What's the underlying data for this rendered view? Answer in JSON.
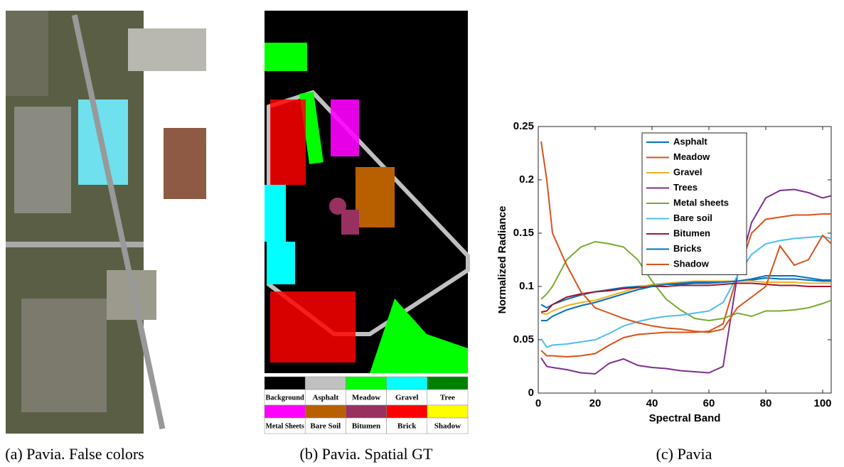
{
  "figure_a": {
    "caption": "(a) Pavia. False colors"
  },
  "figure_b": {
    "caption": "(b) Pavia. Spatial GT",
    "legend": [
      {
        "label": "Background",
        "color": "#000000"
      },
      {
        "label": "Asphalt",
        "color": "#c0c0c0"
      },
      {
        "label": "Meadow",
        "color": "#00ff00"
      },
      {
        "label": "Gravel",
        "color": "#00ffff"
      },
      {
        "label": "Tree",
        "color": "#008000"
      },
      {
        "label": "Metal Sheets",
        "color": "#ff00ff"
      },
      {
        "label": "Bare Soil",
        "color": "#b86000"
      },
      {
        "label": "Bitumen",
        "color": "#983060"
      },
      {
        "label": "Brick",
        "color": "#ff0000"
      },
      {
        "label": "Shadow",
        "color": "#ffff00"
      }
    ]
  },
  "chart_data": {
    "type": "line",
    "caption": "(c) Pavia",
    "x_label": "Spectral Band",
    "y_label": "Normalized Radiance",
    "xlim": [
      0,
      103
    ],
    "ylim": [
      0,
      0.25
    ],
    "xticks": [
      0,
      20,
      40,
      60,
      80,
      100
    ],
    "yticks": [
      0,
      0.05,
      0.1,
      0.15,
      0.2,
      0.25
    ],
    "x": [
      1,
      3,
      5,
      10,
      15,
      20,
      25,
      30,
      35,
      40,
      45,
      50,
      55,
      60,
      65,
      70,
      75,
      80,
      85,
      90,
      95,
      100,
      103
    ],
    "series": [
      {
        "name": "Asphalt",
        "color": "#0072bd",
        "values": [
          0.083,
          0.08,
          0.083,
          0.088,
          0.092,
          0.095,
          0.097,
          0.099,
          0.1,
          0.101,
          0.102,
          0.102,
          0.103,
          0.103,
          0.104,
          0.105,
          0.106,
          0.108,
          0.107,
          0.107,
          0.106,
          0.105,
          0.105
        ]
      },
      {
        "name": "Meadow",
        "color": "#d95319",
        "values": [
          0.04,
          0.035,
          0.035,
          0.034,
          0.035,
          0.037,
          0.045,
          0.052,
          0.055,
          0.056,
          0.057,
          0.057,
          0.057,
          0.058,
          0.065,
          0.11,
          0.15,
          0.163,
          0.165,
          0.167,
          0.167,
          0.168,
          0.168
        ]
      },
      {
        "name": "Gravel",
        "color": "#edb120",
        "values": [
          0.075,
          0.074,
          0.077,
          0.082,
          0.085,
          0.087,
          0.091,
          0.095,
          0.099,
          0.102,
          0.103,
          0.104,
          0.105,
          0.105,
          0.105,
          0.105,
          0.105,
          0.104,
          0.104,
          0.104,
          0.103,
          0.103,
          0.103
        ]
      },
      {
        "name": "Trees",
        "color": "#7e2f8e",
        "values": [
          0.033,
          0.025,
          0.024,
          0.022,
          0.019,
          0.018,
          0.028,
          0.032,
          0.026,
          0.024,
          0.023,
          0.021,
          0.02,
          0.019,
          0.025,
          0.11,
          0.16,
          0.183,
          0.19,
          0.191,
          0.188,
          0.183,
          0.185
        ]
      },
      {
        "name": "Metal sheets",
        "color": "#77ac30",
        "values": [
          0.088,
          0.093,
          0.1,
          0.125,
          0.137,
          0.142,
          0.14,
          0.137,
          0.125,
          0.105,
          0.088,
          0.078,
          0.07,
          0.068,
          0.07,
          0.075,
          0.072,
          0.077,
          0.077,
          0.078,
          0.08,
          0.084,
          0.087
        ]
      },
      {
        "name": "Bare soil",
        "color": "#4dbeee",
        "values": [
          0.051,
          0.043,
          0.045,
          0.046,
          0.048,
          0.05,
          0.056,
          0.063,
          0.067,
          0.07,
          0.072,
          0.073,
          0.075,
          0.077,
          0.085,
          0.11,
          0.13,
          0.14,
          0.143,
          0.145,
          0.146,
          0.147,
          0.145
        ]
      },
      {
        "name": "Bitumen",
        "color": "#a2142f",
        "values": [
          0.076,
          0.077,
          0.083,
          0.09,
          0.093,
          0.095,
          0.096,
          0.098,
          0.099,
          0.1,
          0.1,
          0.101,
          0.101,
          0.101,
          0.102,
          0.103,
          0.103,
          0.102,
          0.101,
          0.101,
          0.1,
          0.1,
          0.1
        ]
      },
      {
        "name": "Bricks",
        "color": "#0072bd",
        "values": [
          0.068,
          0.068,
          0.072,
          0.078,
          0.082,
          0.085,
          0.089,
          0.093,
          0.097,
          0.1,
          0.102,
          0.103,
          0.104,
          0.104,
          0.104,
          0.105,
          0.107,
          0.11,
          0.11,
          0.11,
          0.108,
          0.106,
          0.106
        ]
      },
      {
        "name": "Shadow",
        "color": "#d95319",
        "values": [
          0.236,
          0.2,
          0.15,
          0.12,
          0.095,
          0.08,
          0.075,
          0.07,
          0.066,
          0.063,
          0.061,
          0.06,
          0.058,
          0.057,
          0.06,
          0.08,
          0.09,
          0.1,
          0.138,
          0.12,
          0.125,
          0.148,
          0.14
        ]
      }
    ]
  }
}
